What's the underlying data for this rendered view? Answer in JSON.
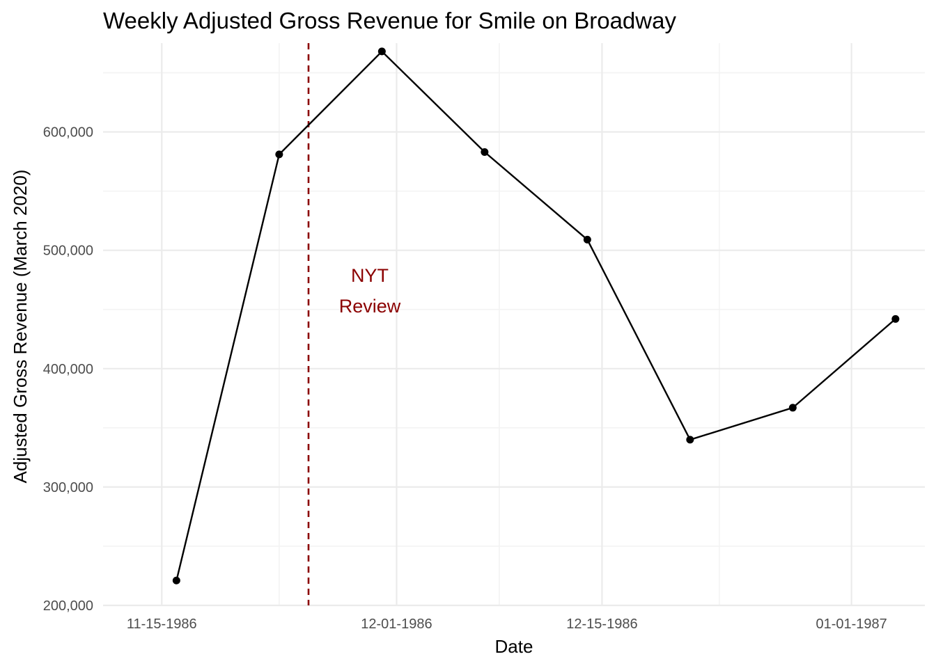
{
  "chart_data": {
    "type": "line",
    "title": "Weekly Adjusted Gross Revenue for Smile on Broadway",
    "xlabel": "Date",
    "ylabel": "Adjusted Gross Revenue (March 2020)",
    "x_ticks": [
      "1986-11-15",
      "1986-12-01",
      "1986-12-15",
      "1987-01-01"
    ],
    "x_tick_labels": [
      "11-15-1986",
      "12-01-1986",
      "12-15-1986",
      "01-01-1987"
    ],
    "x_minor": [
      "1986-11-23",
      "1986-12-08",
      "1986-12-23"
    ],
    "xlim": [
      "1986-11-11",
      "1987-01-06"
    ],
    "y_ticks": [
      200000,
      300000,
      400000,
      500000,
      600000
    ],
    "y_tick_labels": [
      "200,000",
      "300,000",
      "400,000",
      "500,000",
      "600,000"
    ],
    "ylim": [
      200000,
      675000
    ],
    "grid": true,
    "series": [
      {
        "x": [
          "1986-11-16",
          "1986-11-23",
          "1986-11-30",
          "1986-12-07",
          "1986-12-14",
          "1986-12-21",
          "1986-12-28",
          "1987-01-04"
        ],
        "y": [
          221000,
          581000,
          668000,
          583000,
          509000,
          340000,
          367000,
          442000
        ],
        "color": "#000000"
      }
    ],
    "annotations": [
      {
        "type": "vline",
        "x": "1986-11-25",
        "color": "#8b0000",
        "style": "dashed",
        "label_lines": [
          "NYT",
          "Review"
        ],
        "label_color": "#8b0000"
      }
    ]
  }
}
